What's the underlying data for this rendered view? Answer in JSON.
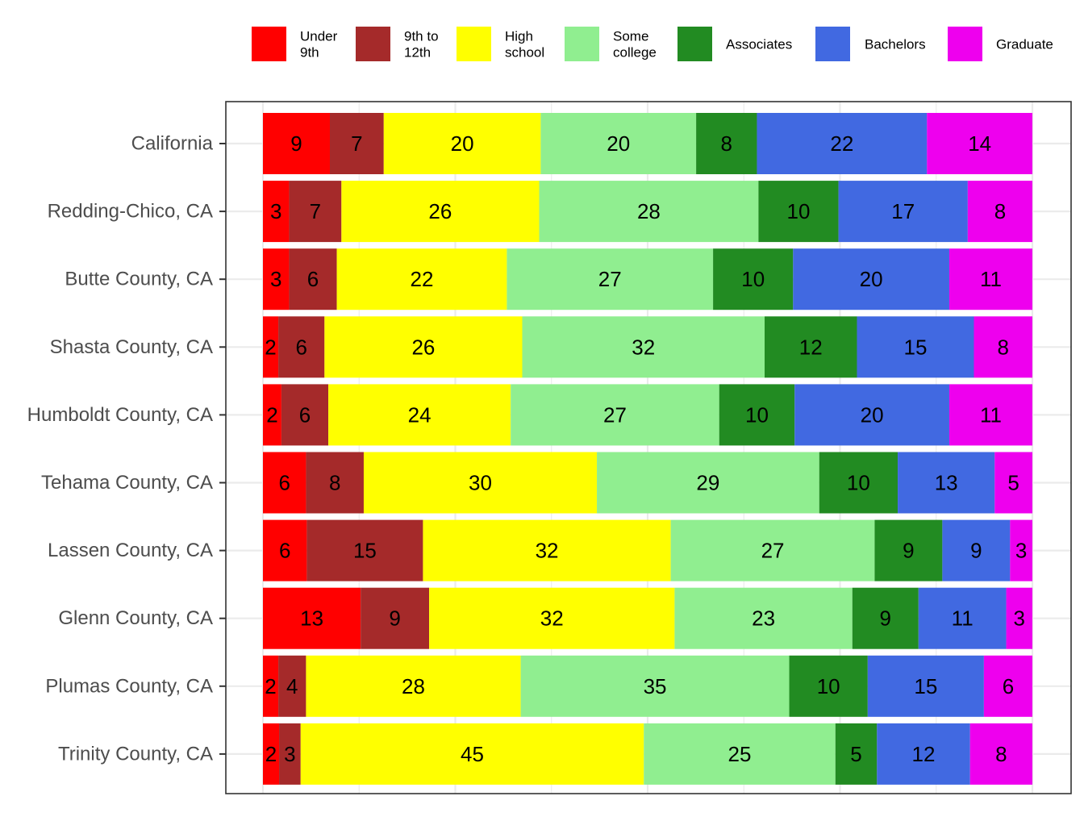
{
  "chart_data": {
    "type": "bar",
    "orientation": "horizontal",
    "stacked": true,
    "title": "",
    "xlabel": "",
    "ylabel": "",
    "xlim": [
      0,
      100
    ],
    "grid": true,
    "legend_position": "top",
    "categories": [
      "California",
      "Redding-Chico, CA",
      "Butte County, CA",
      "Shasta County, CA",
      "Humboldt County, CA",
      "Tehama County, CA",
      "Lassen County, CA",
      "Glenn County, CA",
      "Plumas County, CA",
      "Trinity County, CA"
    ],
    "series": [
      {
        "name": "Under 9th",
        "legend_lines": [
          "Under",
          "9th"
        ],
        "color": "#ff0000",
        "values": [
          8.7,
          3.4,
          3.4,
          2.0,
          2.4,
          5.6,
          5.7,
          12.7,
          2.0,
          2.1
        ],
        "labels": [
          "9",
          "3",
          "3",
          "2",
          "2",
          "6",
          "6",
          "13",
          "2",
          "2"
        ]
      },
      {
        "name": "9th to 12th",
        "legend_lines": [
          "9th to",
          "12th"
        ],
        "color": "#a52a2a",
        "values": [
          7.0,
          6.8,
          6.2,
          6.0,
          6.1,
          7.5,
          15.1,
          8.9,
          3.6,
          2.8
        ],
        "labels": [
          "7",
          "7",
          "6",
          "6",
          "6",
          "8",
          "15",
          "9",
          "4",
          "3"
        ]
      },
      {
        "name": "High school",
        "legend_lines": [
          "High",
          "school"
        ],
        "color": "#ffff00",
        "values": [
          20.4,
          25.7,
          22.1,
          25.7,
          23.7,
          30.3,
          32.2,
          31.9,
          27.9,
          44.6
        ],
        "labels": [
          "20",
          "26",
          "22",
          "26",
          "24",
          "30",
          "32",
          "32",
          "28",
          "45"
        ]
      },
      {
        "name": "Some college",
        "legend_lines": [
          "Some",
          "college"
        ],
        "color": "#90ee90",
        "values": [
          20.2,
          28.5,
          26.8,
          31.5,
          27.1,
          28.9,
          26.5,
          23.1,
          34.9,
          24.9
        ],
        "labels": [
          "20",
          "28",
          "27",
          "32",
          "27",
          "29",
          "27",
          "23",
          "35",
          "25"
        ]
      },
      {
        "name": "Associates",
        "legend_lines": [
          "Associates"
        ],
        "color": "#228b22",
        "values": [
          7.9,
          10.4,
          10.4,
          12.0,
          9.8,
          10.2,
          8.8,
          8.6,
          10.2,
          5.4
        ],
        "labels": [
          "8",
          "10",
          "10",
          "12",
          "10",
          "10",
          "9",
          "9",
          "10",
          "5"
        ]
      },
      {
        "name": "Bachelors",
        "legend_lines": [
          "Bachelors"
        ],
        "color": "#4169e1",
        "values": [
          22.1,
          16.8,
          20.3,
          15.2,
          20.1,
          12.6,
          8.8,
          11.4,
          15.1,
          12.1
        ],
        "labels": [
          "22",
          "17",
          "20",
          "15",
          "20",
          "13",
          "9",
          "11",
          "15",
          "12"
        ]
      },
      {
        "name": "Graduate",
        "legend_lines": [
          "Graduate"
        ],
        "color": "#ee00ee",
        "values": [
          13.7,
          8.4,
          10.8,
          7.6,
          10.8,
          4.9,
          2.9,
          3.4,
          6.3,
          8.1
        ],
        "labels": [
          "14",
          "8",
          "11",
          "8",
          "11",
          "5",
          "3",
          "3",
          "6",
          "8"
        ]
      }
    ]
  }
}
